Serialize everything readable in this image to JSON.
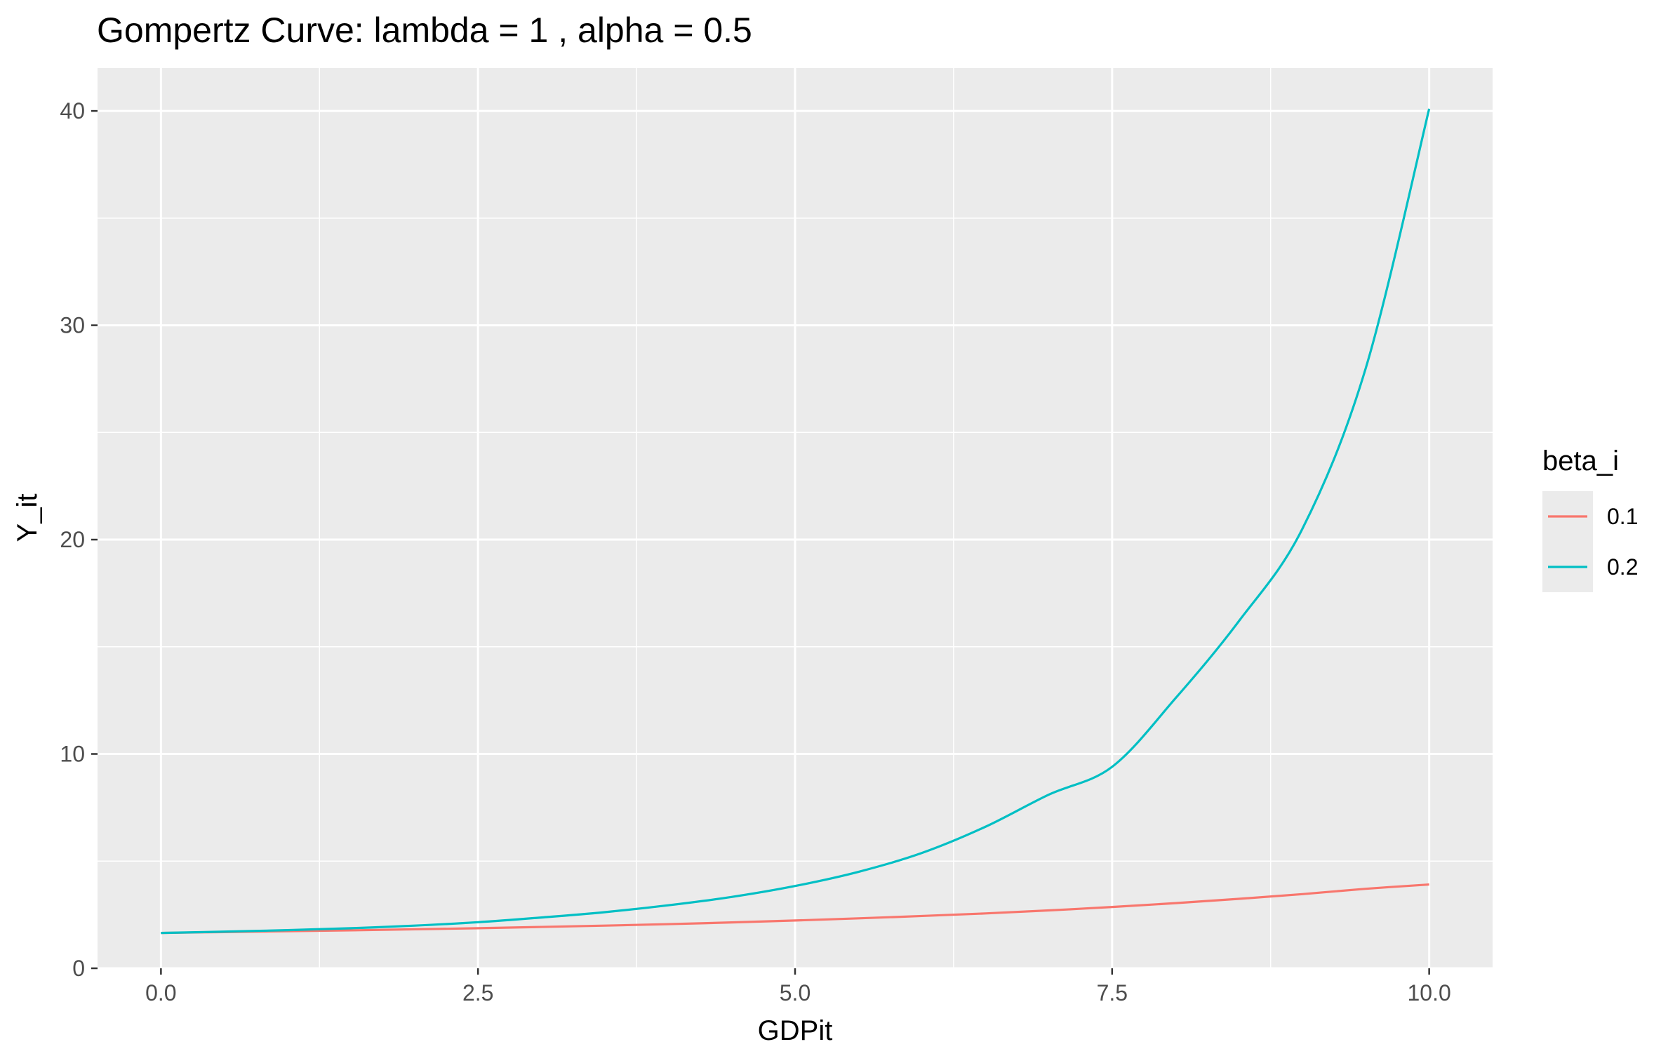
{
  "chart_data": {
    "type": "line",
    "title": "Gompertz Curve: lambda = 1 , alpha = 0.5",
    "xlabel": "GDPit",
    "ylabel": "Y_it",
    "xlim": [
      -0.5,
      10.5
    ],
    "ylim": [
      0,
      42
    ],
    "x_ticks": [
      0.0,
      2.5,
      5.0,
      7.5,
      10.0
    ],
    "x_tick_labels": [
      "0.0",
      "2.5",
      "5.0",
      "7.5",
      "10.0"
    ],
    "y_ticks": [
      0,
      10,
      20,
      30,
      40
    ],
    "y_tick_labels": [
      "0",
      "10",
      "20",
      "30",
      "40"
    ],
    "grid": true,
    "legend": {
      "title": "beta_i",
      "placement": "right"
    },
    "series": [
      {
        "name": "0.1",
        "color": "#F8766D",
        "x": [
          0,
          0.5,
          1,
          1.5,
          2,
          2.5,
          3,
          3.5,
          4,
          4.5,
          5,
          5.5,
          6,
          6.5,
          7,
          7.5,
          8,
          8.5,
          9,
          9.5,
          10
        ],
        "y": [
          1.65,
          1.69,
          1.73,
          1.77,
          1.82,
          1.87,
          1.93,
          1.99,
          2.06,
          2.14,
          2.23,
          2.33,
          2.44,
          2.56,
          2.7,
          2.86,
          3.04,
          3.24,
          3.46,
          3.71,
          3.91
        ]
      },
      {
        "name": "0.2",
        "color": "#00BFC4",
        "x": [
          0,
          0.5,
          1,
          1.5,
          2,
          2.5,
          3,
          3.5,
          4,
          4.5,
          5,
          5.5,
          6,
          6.5,
          7,
          7.5,
          8,
          8.5,
          9,
          9.5,
          10
        ],
        "y": [
          1.65,
          1.71,
          1.78,
          1.87,
          1.99,
          2.15,
          2.37,
          2.62,
          2.94,
          3.33,
          3.84,
          4.5,
          5.38,
          6.6,
          8.1,
          9.4,
          12.6,
          16.2,
          20.5,
          28.0,
          40.1
        ]
      }
    ]
  }
}
